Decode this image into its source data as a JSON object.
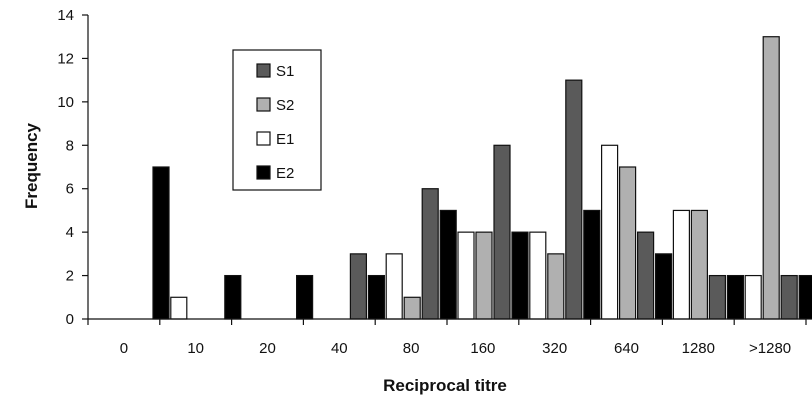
{
  "chart_data": {
    "type": "bar",
    "title": "",
    "xlabel": "Reciprocal titre",
    "ylabel": "Frequency",
    "ylim": [
      0,
      14
    ],
    "yticks": [
      0,
      2,
      4,
      6,
      8,
      10,
      12,
      14
    ],
    "grid": false,
    "legend_position": "top-left-inside",
    "categories": [
      "0",
      "10",
      "20",
      "40",
      "80",
      "160",
      "320",
      "640",
      "1280",
      ">1280"
    ],
    "series": [
      {
        "name": "E1",
        "color": "#ffffff",
        "values": [
          0,
          1,
          0,
          0,
          3,
          4,
          4,
          8,
          5,
          2
        ]
      },
      {
        "name": "S2",
        "color": "#b0b0b0",
        "values": [
          0,
          0,
          0,
          0,
          1,
          4,
          3,
          7,
          5,
          13
        ]
      },
      {
        "name": "S1",
        "color": "#5a5a5a",
        "values": [
          0,
          0,
          0,
          3,
          6,
          8,
          11,
          4,
          2,
          2
        ]
      },
      {
        "name": "E2",
        "color": "#000000",
        "values": [
          7,
          2,
          2,
          2,
          5,
          4,
          5,
          3,
          2,
          2
        ]
      }
    ],
    "legend_order": [
      "S1",
      "S2",
      "E1",
      "E2"
    ]
  }
}
